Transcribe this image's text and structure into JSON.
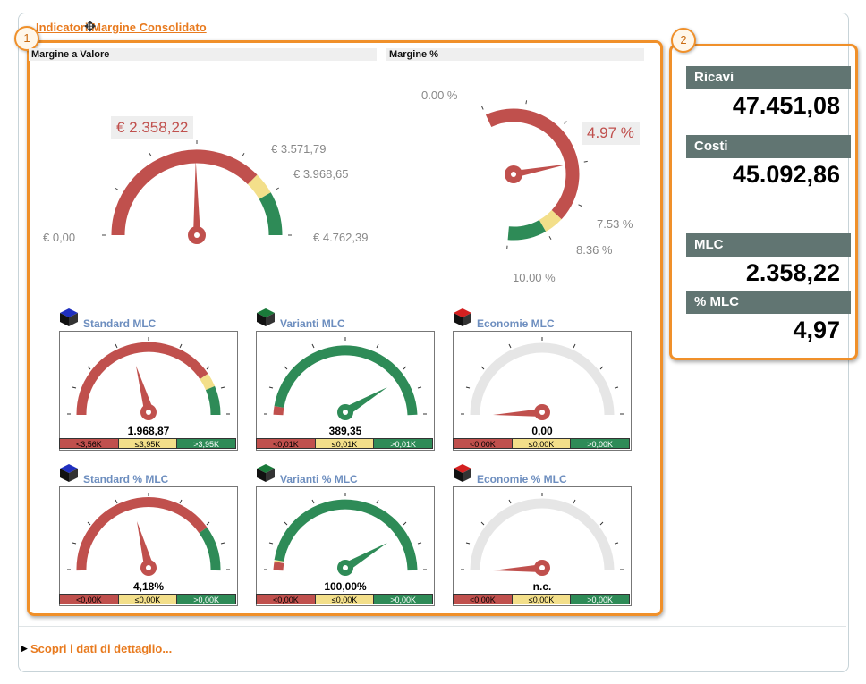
{
  "title": "Indicatori Margine Consolidato",
  "detail_link": "Scopri i dati di dettaglio...",
  "callouts": [
    "1",
    "2"
  ],
  "gauges": {
    "valore": {
      "header": "Margine a Valore",
      "value_label": "€ 2.358,22",
      "min_label": "€ 0,00",
      "t1_label": "€ 3.571,79",
      "t2_label": "€ 3.968,65",
      "max_label": "€ 4.762,39",
      "value": 2358.22,
      "range": [
        0,
        4762.39
      ],
      "thresholds": [
        3571.79,
        3968.65
      ]
    },
    "percent": {
      "header": "Margine %",
      "value_label": "4.97 %",
      "min_label": "0.00 %",
      "t1_label": "7.53 %",
      "t2_label": "8.36 %",
      "max_label": "10.00 %",
      "value": 4.97,
      "range": [
        0,
        10
      ],
      "thresholds": [
        7.53,
        8.36
      ]
    }
  },
  "mini_gauges": [
    {
      "title": "Standard MLC",
      "value": "1.968,87",
      "legend": [
        "<3,56K",
        "≤3,95K",
        ">3,95K"
      ],
      "cube_color": "#1f2fbf"
    },
    {
      "title": "Varianti MLC",
      "value": "389,35",
      "legend": [
        "<0,01K",
        "≤0,01K",
        ">0,01K"
      ],
      "cube_color": "#1a7a3a"
    },
    {
      "title": "Economie MLC",
      "value": "0,00",
      "legend": [
        "<0,00K",
        "≤0,00K",
        ">0,00K"
      ],
      "cube_color": "#d42020"
    },
    {
      "title": "Standard % MLC",
      "value": "4,18%",
      "legend": [
        "<0,00K",
        "≤0,00K",
        ">0,00K"
      ],
      "cube_color": "#1f2fbf"
    },
    {
      "title": "Varianti % MLC",
      "value": "100,00%",
      "legend": [
        "<0,00K",
        "≤0,00K",
        ">0,00K"
      ],
      "cube_color": "#1a7a3a"
    },
    {
      "title": "Economie % MLC",
      "value": "n.c.",
      "legend": [
        "<0,00K",
        "≤0,00K",
        ">0,00K"
      ],
      "cube_color": "#d42020"
    }
  ],
  "kpis": [
    {
      "label": "Ricavi",
      "value": "47.451,08"
    },
    {
      "label": "Costi",
      "value": "45.092,86"
    },
    {
      "label": "MLC",
      "value": "2.358,22"
    },
    {
      "label": "% MLC",
      "value": "4,97"
    }
  ],
  "colors": {
    "accent": "#e87a1e",
    "red": "#c0504d",
    "yellow": "#f3df8a",
    "green": "#2e8b57",
    "grey": "#e6e6e6",
    "kpi_header": "#617572"
  }
}
